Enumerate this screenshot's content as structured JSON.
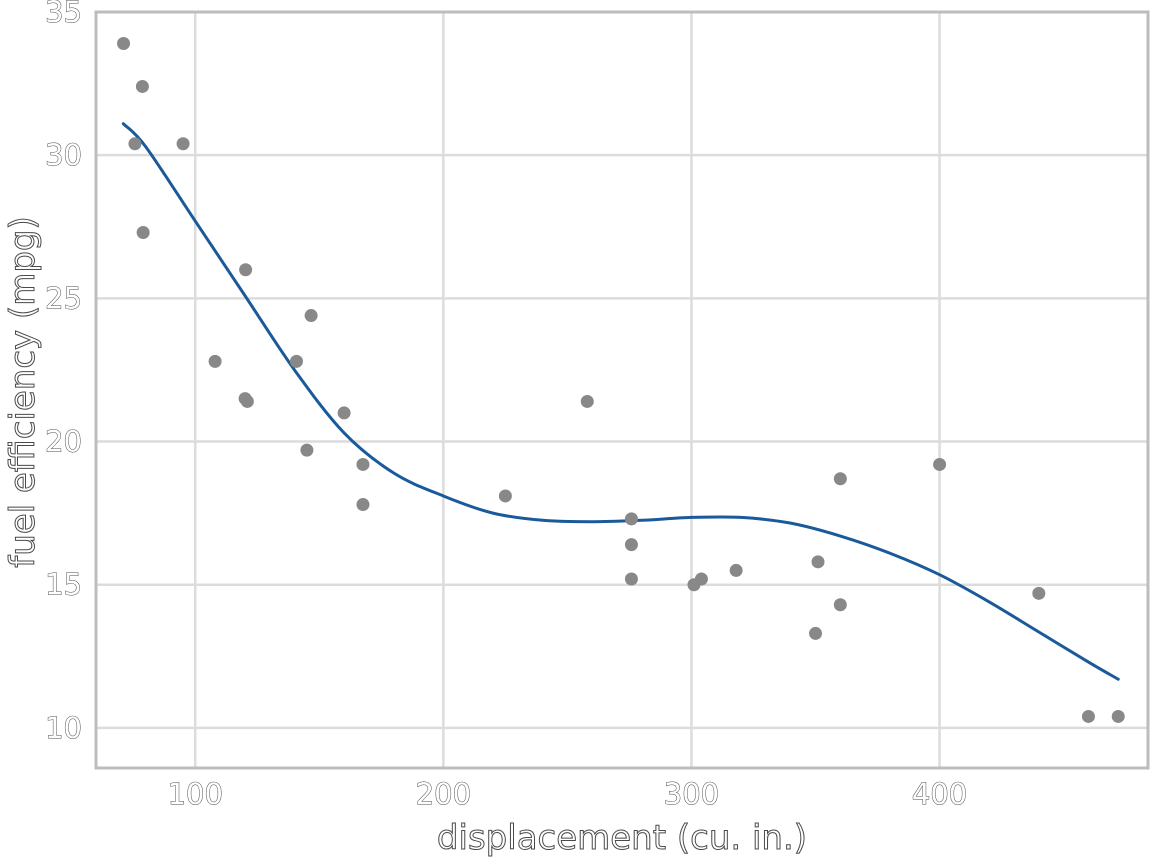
{
  "chart_data": {
    "type": "scatter",
    "title": "",
    "xlabel": "displacement (cu. in.)",
    "ylabel": "fuel efficiency (mpg)",
    "xlim": [
      60,
      484
    ],
    "ylim": [
      8.6,
      35
    ],
    "x_ticks": [
      100,
      200,
      300,
      400
    ],
    "y_ticks": [
      10,
      15,
      20,
      25,
      30,
      35
    ],
    "grid": true,
    "legend": "none",
    "point_color": "#888888",
    "line_color": "#1a5a9a",
    "series": [
      {
        "type": "scatter",
        "points": [
          {
            "x": 71.1,
            "y": 33.9
          },
          {
            "x": 78.7,
            "y": 32.4
          },
          {
            "x": 75.7,
            "y": 30.4
          },
          {
            "x": 95.1,
            "y": 30.4
          },
          {
            "x": 79.0,
            "y": 27.3
          },
          {
            "x": 120.3,
            "y": 26.0
          },
          {
            "x": 146.7,
            "y": 24.4
          },
          {
            "x": 108.0,
            "y": 22.8
          },
          {
            "x": 140.8,
            "y": 22.8
          },
          {
            "x": 120.1,
            "y": 21.5
          },
          {
            "x": 121.0,
            "y": 21.4
          },
          {
            "x": 160.0,
            "y": 21.0
          },
          {
            "x": 258.0,
            "y": 21.4
          },
          {
            "x": 145.0,
            "y": 19.7
          },
          {
            "x": 167.6,
            "y": 19.2
          },
          {
            "x": 167.6,
            "y": 17.8
          },
          {
            "x": 225.0,
            "y": 18.1
          },
          {
            "x": 275.8,
            "y": 17.3
          },
          {
            "x": 275.8,
            "y": 16.4
          },
          {
            "x": 275.8,
            "y": 15.2
          },
          {
            "x": 301.0,
            "y": 15.0
          },
          {
            "x": 304.0,
            "y": 15.2
          },
          {
            "x": 318.0,
            "y": 15.5
          },
          {
            "x": 351.0,
            "y": 15.8
          },
          {
            "x": 350.0,
            "y": 13.3
          },
          {
            "x": 360.0,
            "y": 14.3
          },
          {
            "x": 360.0,
            "y": 18.7
          },
          {
            "x": 400.0,
            "y": 19.2
          },
          {
            "x": 440.0,
            "y": 14.7
          },
          {
            "x": 460.0,
            "y": 10.4
          },
          {
            "x": 472.0,
            "y": 10.4
          }
        ]
      },
      {
        "type": "line",
        "points": [
          {
            "x": 71,
            "y": 31.1
          },
          {
            "x": 80,
            "y": 30.3
          },
          {
            "x": 100,
            "y": 27.7
          },
          {
            "x": 120,
            "y": 25.1
          },
          {
            "x": 140,
            "y": 22.5
          },
          {
            "x": 160,
            "y": 20.3
          },
          {
            "x": 180,
            "y": 18.9
          },
          {
            "x": 200,
            "y": 18.1
          },
          {
            "x": 220,
            "y": 17.5
          },
          {
            "x": 240,
            "y": 17.25
          },
          {
            "x": 260,
            "y": 17.2
          },
          {
            "x": 280,
            "y": 17.25
          },
          {
            "x": 300,
            "y": 17.35
          },
          {
            "x": 320,
            "y": 17.35
          },
          {
            "x": 340,
            "y": 17.15
          },
          {
            "x": 360,
            "y": 16.7
          },
          {
            "x": 380,
            "y": 16.1
          },
          {
            "x": 400,
            "y": 15.35
          },
          {
            "x": 420,
            "y": 14.4
          },
          {
            "x": 440,
            "y": 13.35
          },
          {
            "x": 460,
            "y": 12.3
          },
          {
            "x": 472,
            "y": 11.7
          }
        ]
      }
    ]
  }
}
